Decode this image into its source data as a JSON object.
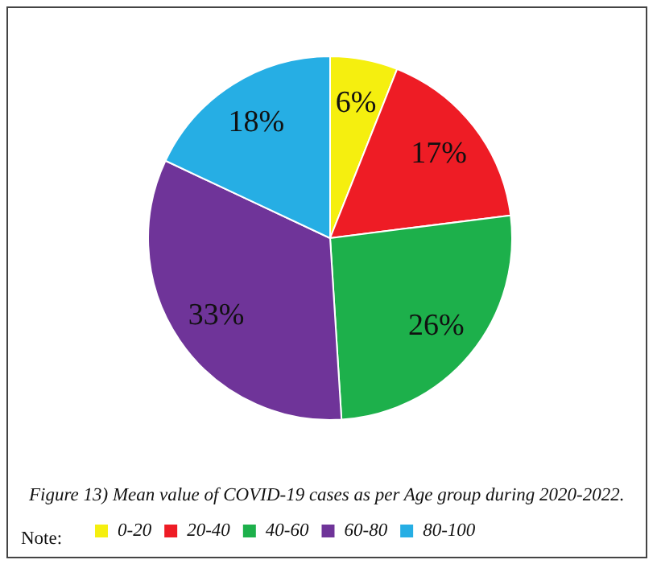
{
  "chart_data": {
    "type": "pie",
    "title": "Figure 13) Mean value of COVID-19 cases as per Age group during 2020-2022.",
    "legend_title": "Note:",
    "legend": "bottom",
    "categories": [
      "0-20",
      "20-40",
      "40-60",
      "60-80",
      "80-100"
    ],
    "values": [
      6,
      17,
      26,
      33,
      18
    ],
    "value_labels": [
      "6%",
      "17%",
      "26%",
      "33%",
      "18%"
    ],
    "colors": [
      "#f5ef0f",
      "#ee1c25",
      "#1db04b",
      "#6f3499",
      "#26aee4"
    ]
  }
}
